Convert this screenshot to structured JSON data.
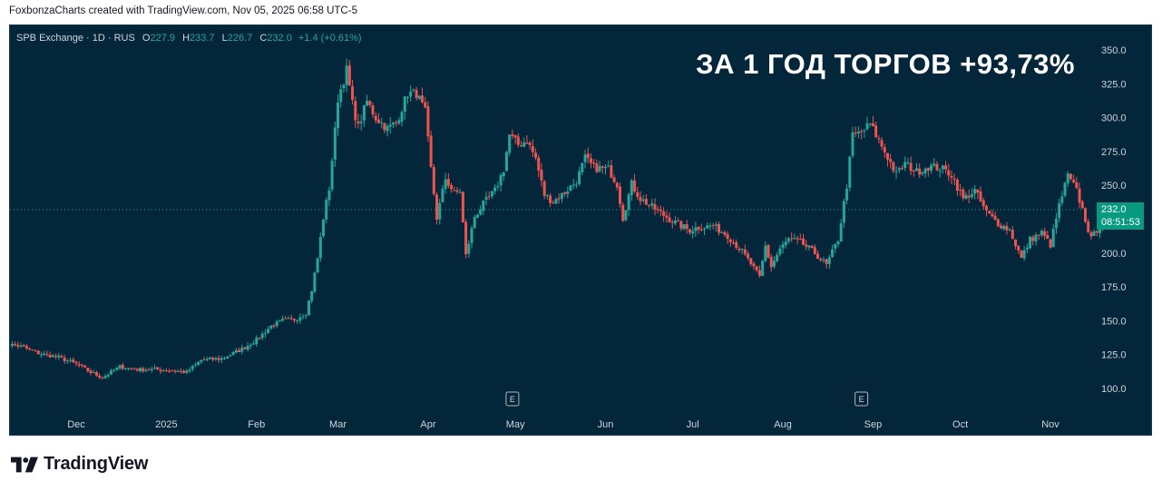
{
  "caption": "FoxbonzaCharts created with TradingView.com, Nov 05, 2025 06:58 UTC-5",
  "legend": {
    "symbol": "SPB Exchange · 1D · RUS",
    "o_key": "O",
    "o": "227.9",
    "h_key": "H",
    "h": "233.7",
    "l_key": "L",
    "l": "226.7",
    "c_key": "C",
    "c": "232.0",
    "change": "+1.4 (+0.61%)"
  },
  "headline": "ЗА 1 ГОД ТОРГОВ +93,73%",
  "price_tag": {
    "price": "232.0",
    "countdown": "08:51:53"
  },
  "earnings_marker": "E",
  "brand": {
    "name": "TradingView"
  },
  "colors": {
    "background": "#03263a",
    "up": "#26a69a",
    "down": "#ef5350",
    "price_tag": "#089981"
  },
  "chart_data": {
    "type": "candlestick",
    "title": "",
    "ylim": [
      85,
      360
    ],
    "y_ticks": [
      "350.0",
      "325.0",
      "300.0",
      "275.0",
      "250.0",
      "225.0",
      "200.0",
      "175.0",
      "150.0",
      "125.0",
      "100.0"
    ],
    "x_ticks": [
      "Dec",
      "2025",
      "Feb",
      "Mar",
      "Apr",
      "May",
      "Jun",
      "Jul",
      "Aug",
      "Sep",
      "Oct",
      "Nov"
    ],
    "x_tick_dates": [
      "2024-12-01",
      "2025-01-01",
      "2025-02-01",
      "2025-03-01",
      "2025-04-01",
      "2025-05-01",
      "2025-06-01",
      "2025-07-01",
      "2025-08-01",
      "2025-09-01",
      "2025-10-01",
      "2025-11-01"
    ],
    "last_price": 232.0,
    "earnings_dates": [
      "2025-04-30",
      "2025-08-28"
    ],
    "grid": false,
    "close_path": [
      [
        "2024-11-05",
        121
      ],
      [
        "2024-11-07",
        133
      ],
      [
        "2024-11-12",
        131
      ],
      [
        "2024-11-18",
        126
      ],
      [
        "2024-11-25",
        123
      ],
      [
        "2024-12-01",
        118
      ],
      [
        "2024-12-06",
        112
      ],
      [
        "2024-12-10",
        108
      ],
      [
        "2024-12-16",
        116
      ],
      [
        "2024-12-22",
        114
      ],
      [
        "2024-12-28",
        114
      ],
      [
        "2025-01-03",
        113
      ],
      [
        "2025-01-08",
        112
      ],
      [
        "2025-01-13",
        121
      ],
      [
        "2025-01-20",
        122
      ],
      [
        "2025-01-27",
        129
      ],
      [
        "2025-02-01",
        136
      ],
      [
        "2025-02-06",
        146
      ],
      [
        "2025-02-10",
        150
      ],
      [
        "2025-02-14",
        151
      ],
      [
        "2025-02-18",
        156
      ],
      [
        "2025-02-20",
        173
      ],
      [
        "2025-02-22",
        196
      ],
      [
        "2025-02-24",
        226
      ],
      [
        "2025-02-26",
        248
      ],
      [
        "2025-02-28",
        290
      ],
      [
        "2025-03-01",
        314
      ],
      [
        "2025-03-04",
        335
      ],
      [
        "2025-03-06",
        310
      ],
      [
        "2025-03-08",
        293
      ],
      [
        "2025-03-11",
        312
      ],
      [
        "2025-03-14",
        300
      ],
      [
        "2025-03-18",
        292
      ],
      [
        "2025-03-21",
        296
      ],
      [
        "2025-03-25",
        318
      ],
      [
        "2025-03-28",
        318
      ],
      [
        "2025-03-31",
        304
      ],
      [
        "2025-04-02",
        262
      ],
      [
        "2025-04-04",
        226
      ],
      [
        "2025-04-07",
        255
      ],
      [
        "2025-04-10",
        244
      ],
      [
        "2025-04-12",
        246
      ],
      [
        "2025-04-14",
        198
      ],
      [
        "2025-04-17",
        227
      ],
      [
        "2025-04-20",
        236
      ],
      [
        "2025-04-24",
        246
      ],
      [
        "2025-04-27",
        262
      ],
      [
        "2025-04-29",
        287
      ],
      [
        "2025-05-02",
        280
      ],
      [
        "2025-05-05",
        283
      ],
      [
        "2025-05-08",
        270
      ],
      [
        "2025-05-11",
        243
      ],
      [
        "2025-05-14",
        238
      ],
      [
        "2025-05-17",
        243
      ],
      [
        "2025-05-22",
        253
      ],
      [
        "2025-05-25",
        270
      ],
      [
        "2025-05-28",
        263
      ],
      [
        "2025-06-02",
        262
      ],
      [
        "2025-06-05",
        251
      ],
      [
        "2025-06-07",
        226
      ],
      [
        "2025-06-10",
        251
      ],
      [
        "2025-06-13",
        240
      ],
      [
        "2025-06-17",
        234
      ],
      [
        "2025-06-21",
        228
      ],
      [
        "2025-06-26",
        221
      ],
      [
        "2025-06-30",
        217
      ],
      [
        "2025-07-03",
        219
      ],
      [
        "2025-07-08",
        220
      ],
      [
        "2025-07-13",
        213
      ],
      [
        "2025-07-18",
        201
      ],
      [
        "2025-07-21",
        192
      ],
      [
        "2025-07-24",
        182
      ],
      [
        "2025-07-26",
        205
      ],
      [
        "2025-07-28",
        190
      ],
      [
        "2025-07-31",
        203
      ],
      [
        "2025-08-03",
        210
      ],
      [
        "2025-08-07",
        208
      ],
      [
        "2025-08-12",
        200
      ],
      [
        "2025-08-16",
        191
      ],
      [
        "2025-08-20",
        210
      ],
      [
        "2025-08-23",
        250
      ],
      [
        "2025-08-25",
        287
      ],
      [
        "2025-08-28",
        289
      ],
      [
        "2025-08-31",
        295
      ],
      [
        "2025-09-03",
        283
      ],
      [
        "2025-09-06",
        271
      ],
      [
        "2025-09-09",
        258
      ],
      [
        "2025-09-12",
        266
      ],
      [
        "2025-09-16",
        260
      ],
      [
        "2025-09-20",
        264
      ],
      [
        "2025-09-24",
        263
      ],
      [
        "2025-09-28",
        258
      ],
      [
        "2025-10-02",
        240
      ],
      [
        "2025-10-06",
        246
      ],
      [
        "2025-10-10",
        230
      ],
      [
        "2025-10-14",
        222
      ],
      [
        "2025-10-18",
        217
      ],
      [
        "2025-10-22",
        196
      ],
      [
        "2025-10-25",
        210
      ],
      [
        "2025-10-29",
        215
      ],
      [
        "2025-11-01",
        206
      ],
      [
        "2025-11-04",
        235
      ],
      [
        "2025-11-07",
        257
      ],
      [
        "2025-11-10",
        246
      ],
      [
        "2025-11-13",
        225
      ],
      [
        "2025-11-15",
        210
      ],
      [
        "2025-11-18",
        221
      ],
      [
        "2025-11-21",
        228
      ],
      [
        "2025-11-24",
        232
      ]
    ]
  }
}
